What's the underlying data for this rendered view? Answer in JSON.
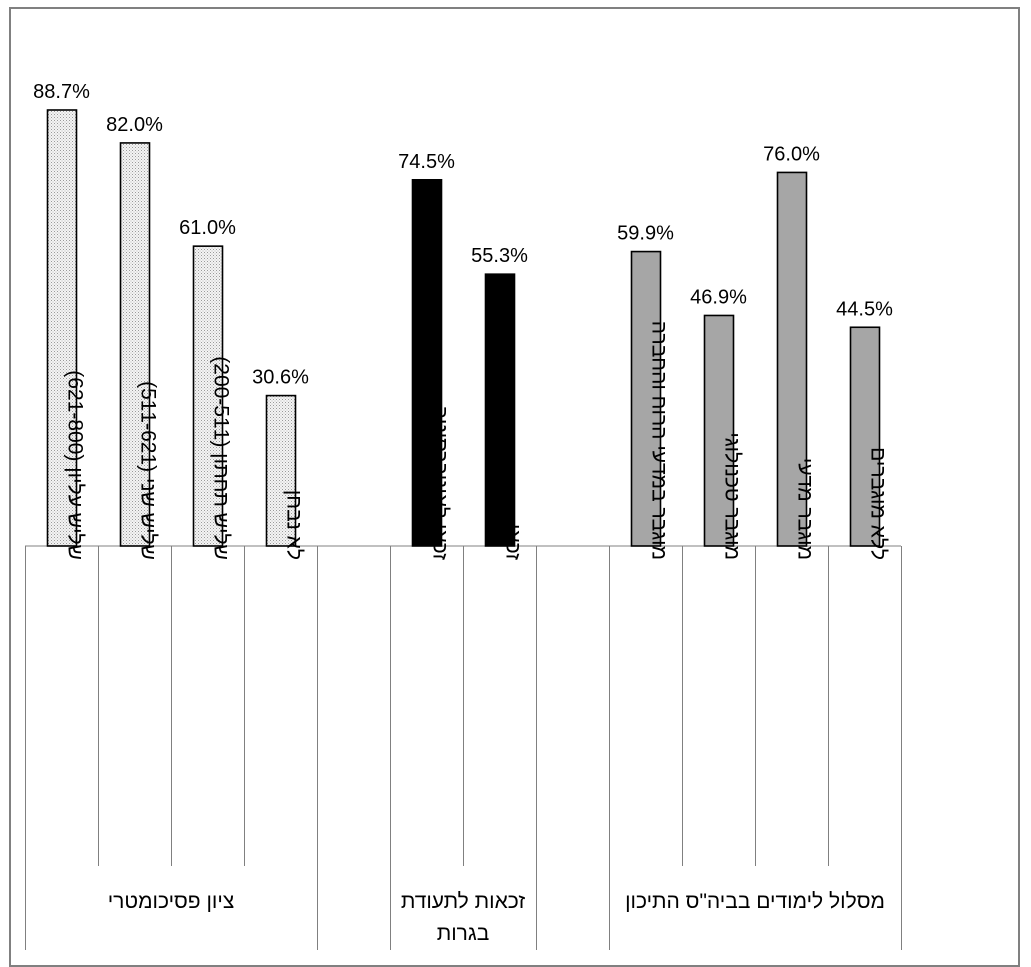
{
  "chart_data": {
    "type": "bar",
    "title": "",
    "xlabel": "",
    "ylabel": "",
    "ylim": [
      0,
      100
    ],
    "grid": false,
    "legend": "none",
    "groups": [
      {
        "name": "ציון פסיכומטרי",
        "name_lines": [
          "ציון פסיכומטרי"
        ],
        "fill": "dotted",
        "color": "#e0e0e0",
        "bars": [
          {
            "category": "שליש עליון (621-800)",
            "value": 88.7,
            "label": "88.7%"
          },
          {
            "category": "שליש שני (511-621)",
            "value": 82.0,
            "label": "82.0%"
          },
          {
            "category": "שליש תחתון (200-511)",
            "value": 61.0,
            "label": "61.0%"
          },
          {
            "category": "לא נבחן",
            "value": 30.6,
            "label": "30.6%"
          }
        ]
      },
      {
        "name": "זכאות לתעודת בגרות",
        "name_lines": [
          "זכאות לתעודת",
          "בגרות"
        ],
        "fill": "solid",
        "color": "#000000",
        "bars": [
          {
            "category": "זכאי לאוניברסיטה",
            "value": 74.5,
            "label": "74.5%"
          },
          {
            "category": "זכאי",
            "value": 55.3,
            "label": "55.3%"
          }
        ]
      },
      {
        "name": "מסלול לימודים בביה\"ס התיכון",
        "name_lines": [
          "מסלול לימודים בביה\"ס התיכון"
        ],
        "fill": "solid",
        "color": "#a6a6a6",
        "bars": [
          {
            "category": "מוגבר במדעי הרוח והחברה",
            "value": 59.9,
            "label": "59.9%"
          },
          {
            "category": "מוגבר טכנולוגי",
            "value": 46.9,
            "label": "46.9%"
          },
          {
            "category": "מוגבר מדעי",
            "value": 76.0,
            "label": "76.0%"
          },
          {
            "category": "ללא מוגברים",
            "value": 44.5,
            "label": "44.5%"
          }
        ]
      }
    ]
  }
}
